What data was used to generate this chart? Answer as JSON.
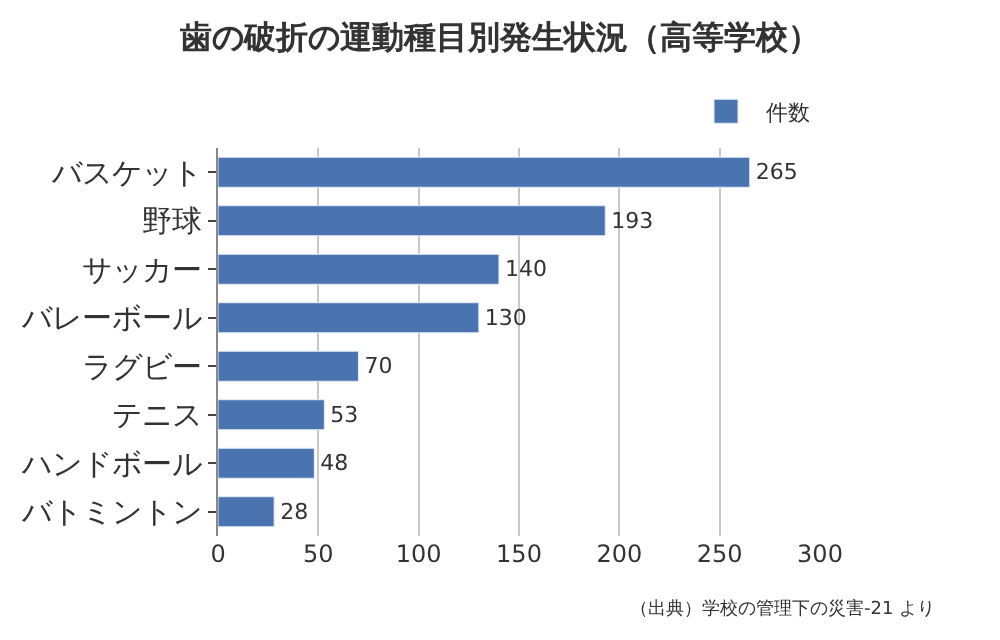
{
  "chart_data": {
    "type": "bar",
    "orientation": "horizontal",
    "title": "歯の破折の運動種目別発生状況（高等学校）",
    "categories": [
      "バスケット",
      "野球",
      "サッカー",
      "バレーボール",
      "ラグビー",
      "テニス",
      "ハンドボール",
      "バトミントン"
    ],
    "series": [
      {
        "name": "件数",
        "color": "#4a74b0",
        "values": [
          265,
          193,
          140,
          130,
          70,
          53,
          48,
          28
        ]
      }
    ],
    "xlim": [
      0,
      300
    ],
    "xticks": [
      0,
      50,
      100,
      150,
      200,
      250,
      300
    ],
    "grid": "x",
    "legend": "top right",
    "data_labels": true,
    "annotations": [
      "（出典）学校の管理下の災害-21 より"
    ]
  }
}
